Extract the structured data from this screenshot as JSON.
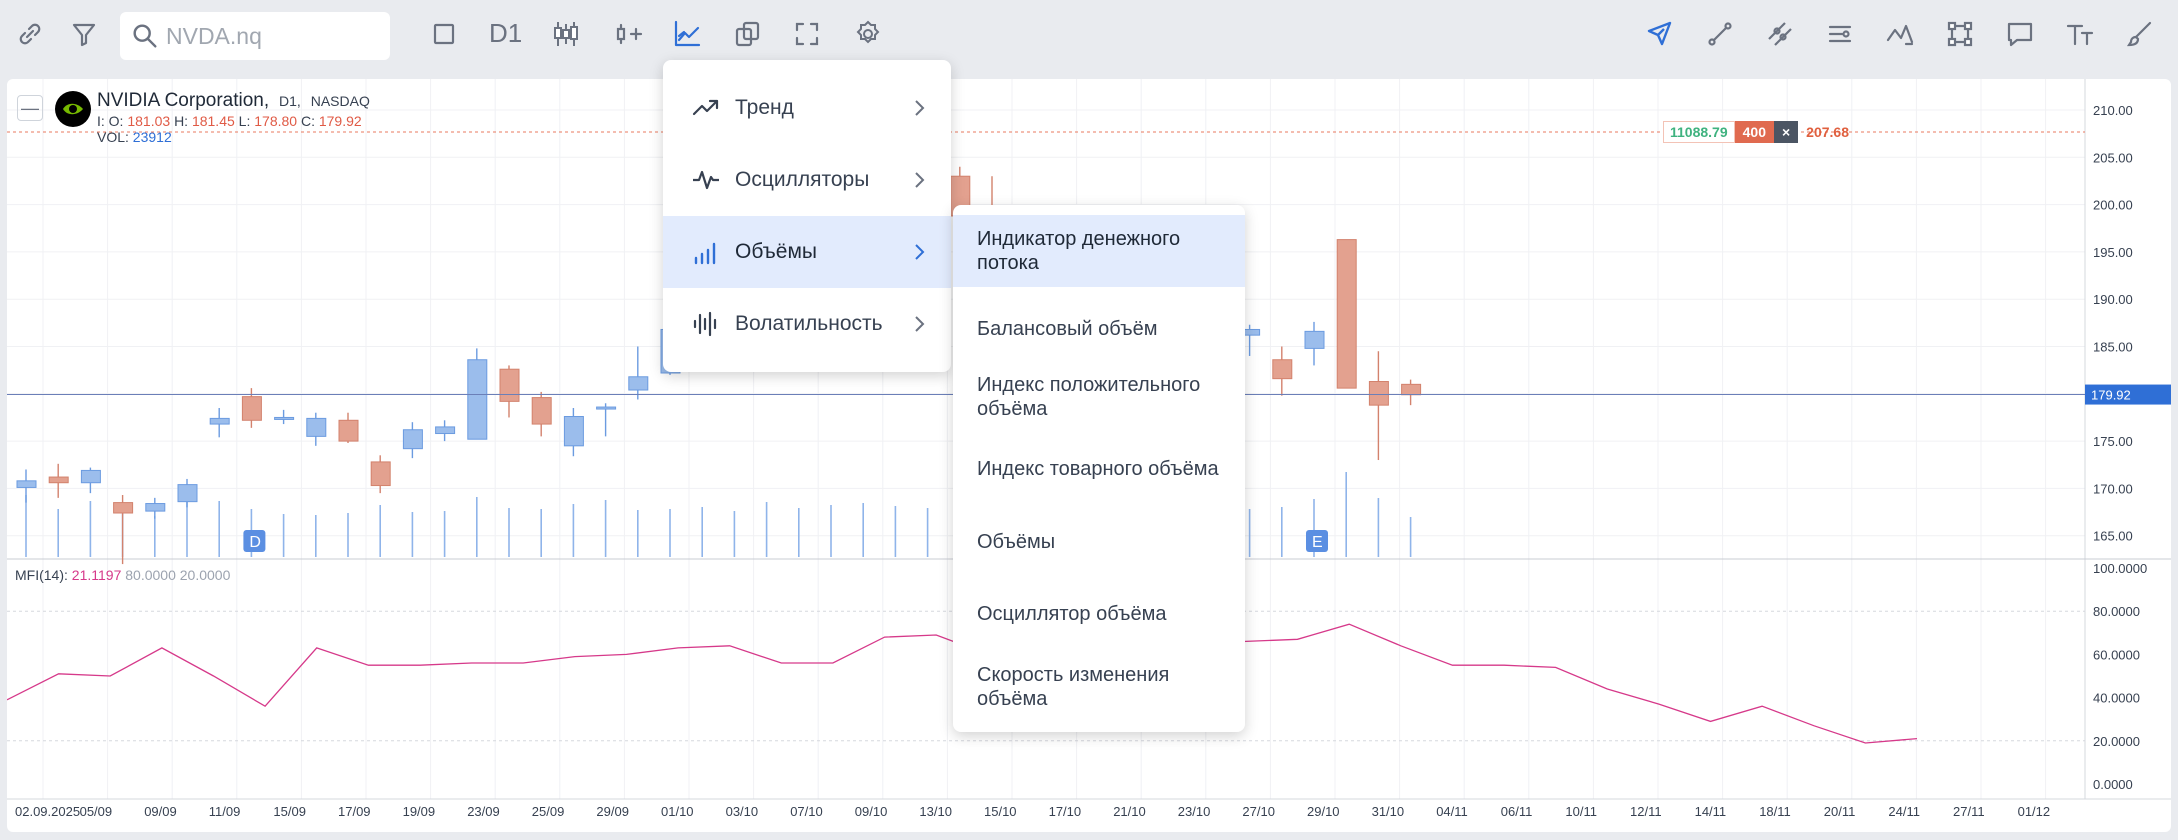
{
  "toolbar": {
    "search_placeholder": "NVDA.nq",
    "timeframe": "D1",
    "left_icons": [
      "link-icon",
      "filter-icon"
    ],
    "mid_icons": [
      "rectangle-icon",
      "timeframe",
      "candles-icon",
      "add-indicator-icon",
      "indicators-icon",
      "layers-icon",
      "fullscreen-icon",
      "settings-icon"
    ],
    "right_icons": [
      "cursor-icon",
      "line-icon",
      "parallel-line-icon",
      "levels-icon",
      "trend-arrow-icon",
      "shape-icon",
      "comment-icon",
      "text-icon",
      "brush-icon"
    ],
    "accent": "#2f6fd6"
  },
  "legend": {
    "name": "NVIDIA Corporation,",
    "timeframe": "D1,",
    "exchange": "NASDAQ",
    "o_label": "I: O:",
    "o": "181.03",
    "h_label": "H:",
    "h": "181.45",
    "l_label": "L:",
    "l": "178.80",
    "c_label": "C:",
    "c": "179.92",
    "vol_label": "VOL:",
    "vol": "23912"
  },
  "order_box": {
    "price": "11088.79",
    "qty": "400",
    "close": "×",
    "level": "207.68"
  },
  "last_price_label": "179.92",
  "indicator": {
    "name": "MFI(14):",
    "value": "21.1197",
    "upper": "80.0000",
    "lower": "20.0000"
  },
  "markers": [
    "D",
    "E"
  ],
  "menu": {
    "items": [
      {
        "label": "Тренд",
        "icon": "trend-icon"
      },
      {
        "label": "Осцилляторы",
        "icon": "oscillator-icon"
      },
      {
        "label": "Объёмы",
        "icon": "volume-icon"
      },
      {
        "label": "Волатильность",
        "icon": "volatility-icon"
      }
    ],
    "active_index": 2
  },
  "submenu": {
    "items": [
      "Индикатор денежного потока",
      "Балансовый объём",
      "Индекс положительного объёма",
      "Индекс товарного объёма",
      "Объёмы",
      "Осциллятор объёма",
      "Скорость изменения объёма"
    ],
    "active_index": 0
  },
  "chart_data": {
    "type": "candlestick",
    "title": "NVIDIA Corporation, D1, NASDAQ",
    "price_axis": [
      "210.00",
      "205.00",
      "200.00",
      "195.00",
      "190.00",
      "185.00",
      "180.00",
      "175.00",
      "170.00",
      "165.00"
    ],
    "mfi_axis": [
      "100.0000",
      "80.0000",
      "60.0000",
      "40.0000",
      "20.0000",
      "0.0000"
    ],
    "x_labels": [
      "02.09.2025",
      "05/09",
      "09/09",
      "11/09",
      "15/09",
      "17/09",
      "19/09",
      "23/09",
      "25/09",
      "29/09",
      "01/10",
      "03/10",
      "07/10",
      "09/10",
      "13/10",
      "15/10",
      "17/10",
      "21/10",
      "23/10",
      "27/10",
      "29/10",
      "31/10",
      "04/11",
      "06/11",
      "10/11",
      "12/11",
      "14/11",
      "18/11",
      "20/11",
      "24/11",
      "27/11",
      "01/12"
    ],
    "candles": [
      {
        "o": 170.1,
        "h": 172.0,
        "l": 168.5,
        "c": 170.8
      },
      {
        "o": 171.2,
        "h": 172.6,
        "l": 169.0,
        "c": 170.6
      },
      {
        "o": 170.6,
        "h": 172.2,
        "l": 169.5,
        "c": 171.9
      },
      {
        "o": 168.5,
        "h": 169.3,
        "l": 162.0,
        "c": 167.4
      },
      {
        "o": 167.6,
        "h": 169.0,
        "l": 166.8,
        "c": 168.4
      },
      {
        "o": 168.6,
        "h": 171.0,
        "l": 168.0,
        "c": 170.4
      },
      {
        "o": 176.8,
        "h": 178.5,
        "l": 175.4,
        "c": 177.4
      },
      {
        "o": 179.7,
        "h": 180.6,
        "l": 176.4,
        "c": 177.2
      },
      {
        "o": 177.4,
        "h": 178.3,
        "l": 176.8,
        "c": 177.5
      },
      {
        "o": 175.5,
        "h": 178.0,
        "l": 174.5,
        "c": 177.4
      },
      {
        "o": 177.2,
        "h": 178.0,
        "l": 174.8,
        "c": 175.0
      },
      {
        "o": 172.8,
        "h": 173.5,
        "l": 169.5,
        "c": 170.3
      },
      {
        "o": 174.2,
        "h": 177.0,
        "l": 173.2,
        "c": 176.2
      },
      {
        "o": 175.8,
        "h": 177.2,
        "l": 175.0,
        "c": 176.5
      },
      {
        "o": 175.2,
        "h": 184.8,
        "l": 175.2,
        "c": 183.6
      },
      {
        "o": 182.6,
        "h": 183.0,
        "l": 177.5,
        "c": 179.2
      },
      {
        "o": 179.6,
        "h": 180.2,
        "l": 175.5,
        "c": 176.8
      },
      {
        "o": 174.5,
        "h": 178.5,
        "l": 173.4,
        "c": 177.6
      },
      {
        "o": 178.4,
        "h": 179.0,
        "l": 175.5,
        "c": 178.6
      },
      {
        "o": 180.4,
        "h": 185.0,
        "l": 179.4,
        "c": 181.8
      },
      {
        "o": 182.2,
        "h": 187.5,
        "l": 182.0,
        "c": 186.8
      },
      {
        "o": 186.0,
        "h": 188.0,
        "l": 185.5,
        "c": 187.0
      },
      {
        "o": 192.0,
        "h": 194.0,
        "l": 189.5,
        "c": 190.2
      },
      {
        "o": 191.7,
        "h": 193.0,
        "l": 189.0,
        "c": 193.0
      },
      {
        "o": 192.0,
        "h": 203.2,
        "l": 191.0,
        "c": 201.3
      },
      {
        "o": 208.5,
        "h": 212.0,
        "l": 206.0,
        "c": 207.5
      },
      {
        "o": 206.5,
        "h": 207.0,
        "l": 201.8,
        "c": 204.2
      },
      {
        "o": 206.4,
        "h": 207.5,
        "l": 202.5,
        "c": 202.3
      },
      {
        "o": 208.6,
        "h": 211.5,
        "l": 205.5,
        "c": 207.2
      },
      {
        "o": 203.0,
        "h": 204.0,
        "l": 198.5,
        "c": 198.8
      },
      {
        "o": 199.0,
        "h": 203.0,
        "l": 195.0,
        "c": 195.2
      },
      {
        "o": 196.5,
        "h": 197.5,
        "l": 186.8,
        "c": 188.0
      },
      {
        "o": 185.0,
        "h": 188.0,
        "l": 179.2,
        "c": 188.2
      },
      {
        "o": 195.2,
        "h": 199.5,
        "l": 194.0,
        "c": 199.2
      },
      {
        "o": 195.4,
        "h": 195.6,
        "l": 191.5,
        "c": 193.2
      },
      {
        "o": 195.8,
        "h": 196.2,
        "l": 193.0,
        "c": 193.8
      },
      {
        "o": 191.2,
        "h": 191.6,
        "l": 184.2,
        "c": 186.8
      },
      {
        "o": 184.0,
        "h": 190.6,
        "l": 181.0,
        "c": 190.3
      },
      {
        "o": 186.2,
        "h": 187.3,
        "l": 184.0,
        "c": 186.8
      },
      {
        "o": 183.6,
        "h": 185.0,
        "l": 179.8,
        "c": 181.6
      },
      {
        "o": 184.8,
        "h": 187.6,
        "l": 183.0,
        "c": 186.6
      },
      {
        "o": 196.3,
        "h": 196.3,
        "l": 180.6,
        "c": 180.6
      },
      {
        "o": 181.3,
        "h": 184.5,
        "l": 173.0,
        "c": 178.8
      },
      {
        "o": 181.0,
        "h": 181.5,
        "l": 178.8,
        "c": 179.9
      }
    ],
    "volumes": [
      62,
      48,
      56,
      44,
      41,
      55,
      56,
      48,
      43,
      42,
      44,
      52,
      45,
      46,
      60,
      49,
      48,
      53,
      57,
      47,
      48,
      50,
      46,
      55,
      49,
      52,
      54,
      51,
      49,
      70,
      48,
      63,
      52,
      63,
      60,
      55,
      58,
      50,
      48,
      50,
      58,
      85,
      59,
      40
    ],
    "mfi": [
      39,
      51,
      50,
      63,
      50,
      36,
      63,
      55,
      55,
      56,
      56,
      59,
      60,
      63,
      64,
      56,
      56,
      68,
      69,
      60,
      62,
      60,
      62,
      64,
      66,
      67,
      74,
      64,
      55,
      55,
      54,
      44,
      37,
      29,
      36,
      27,
      19,
      21
    ]
  }
}
